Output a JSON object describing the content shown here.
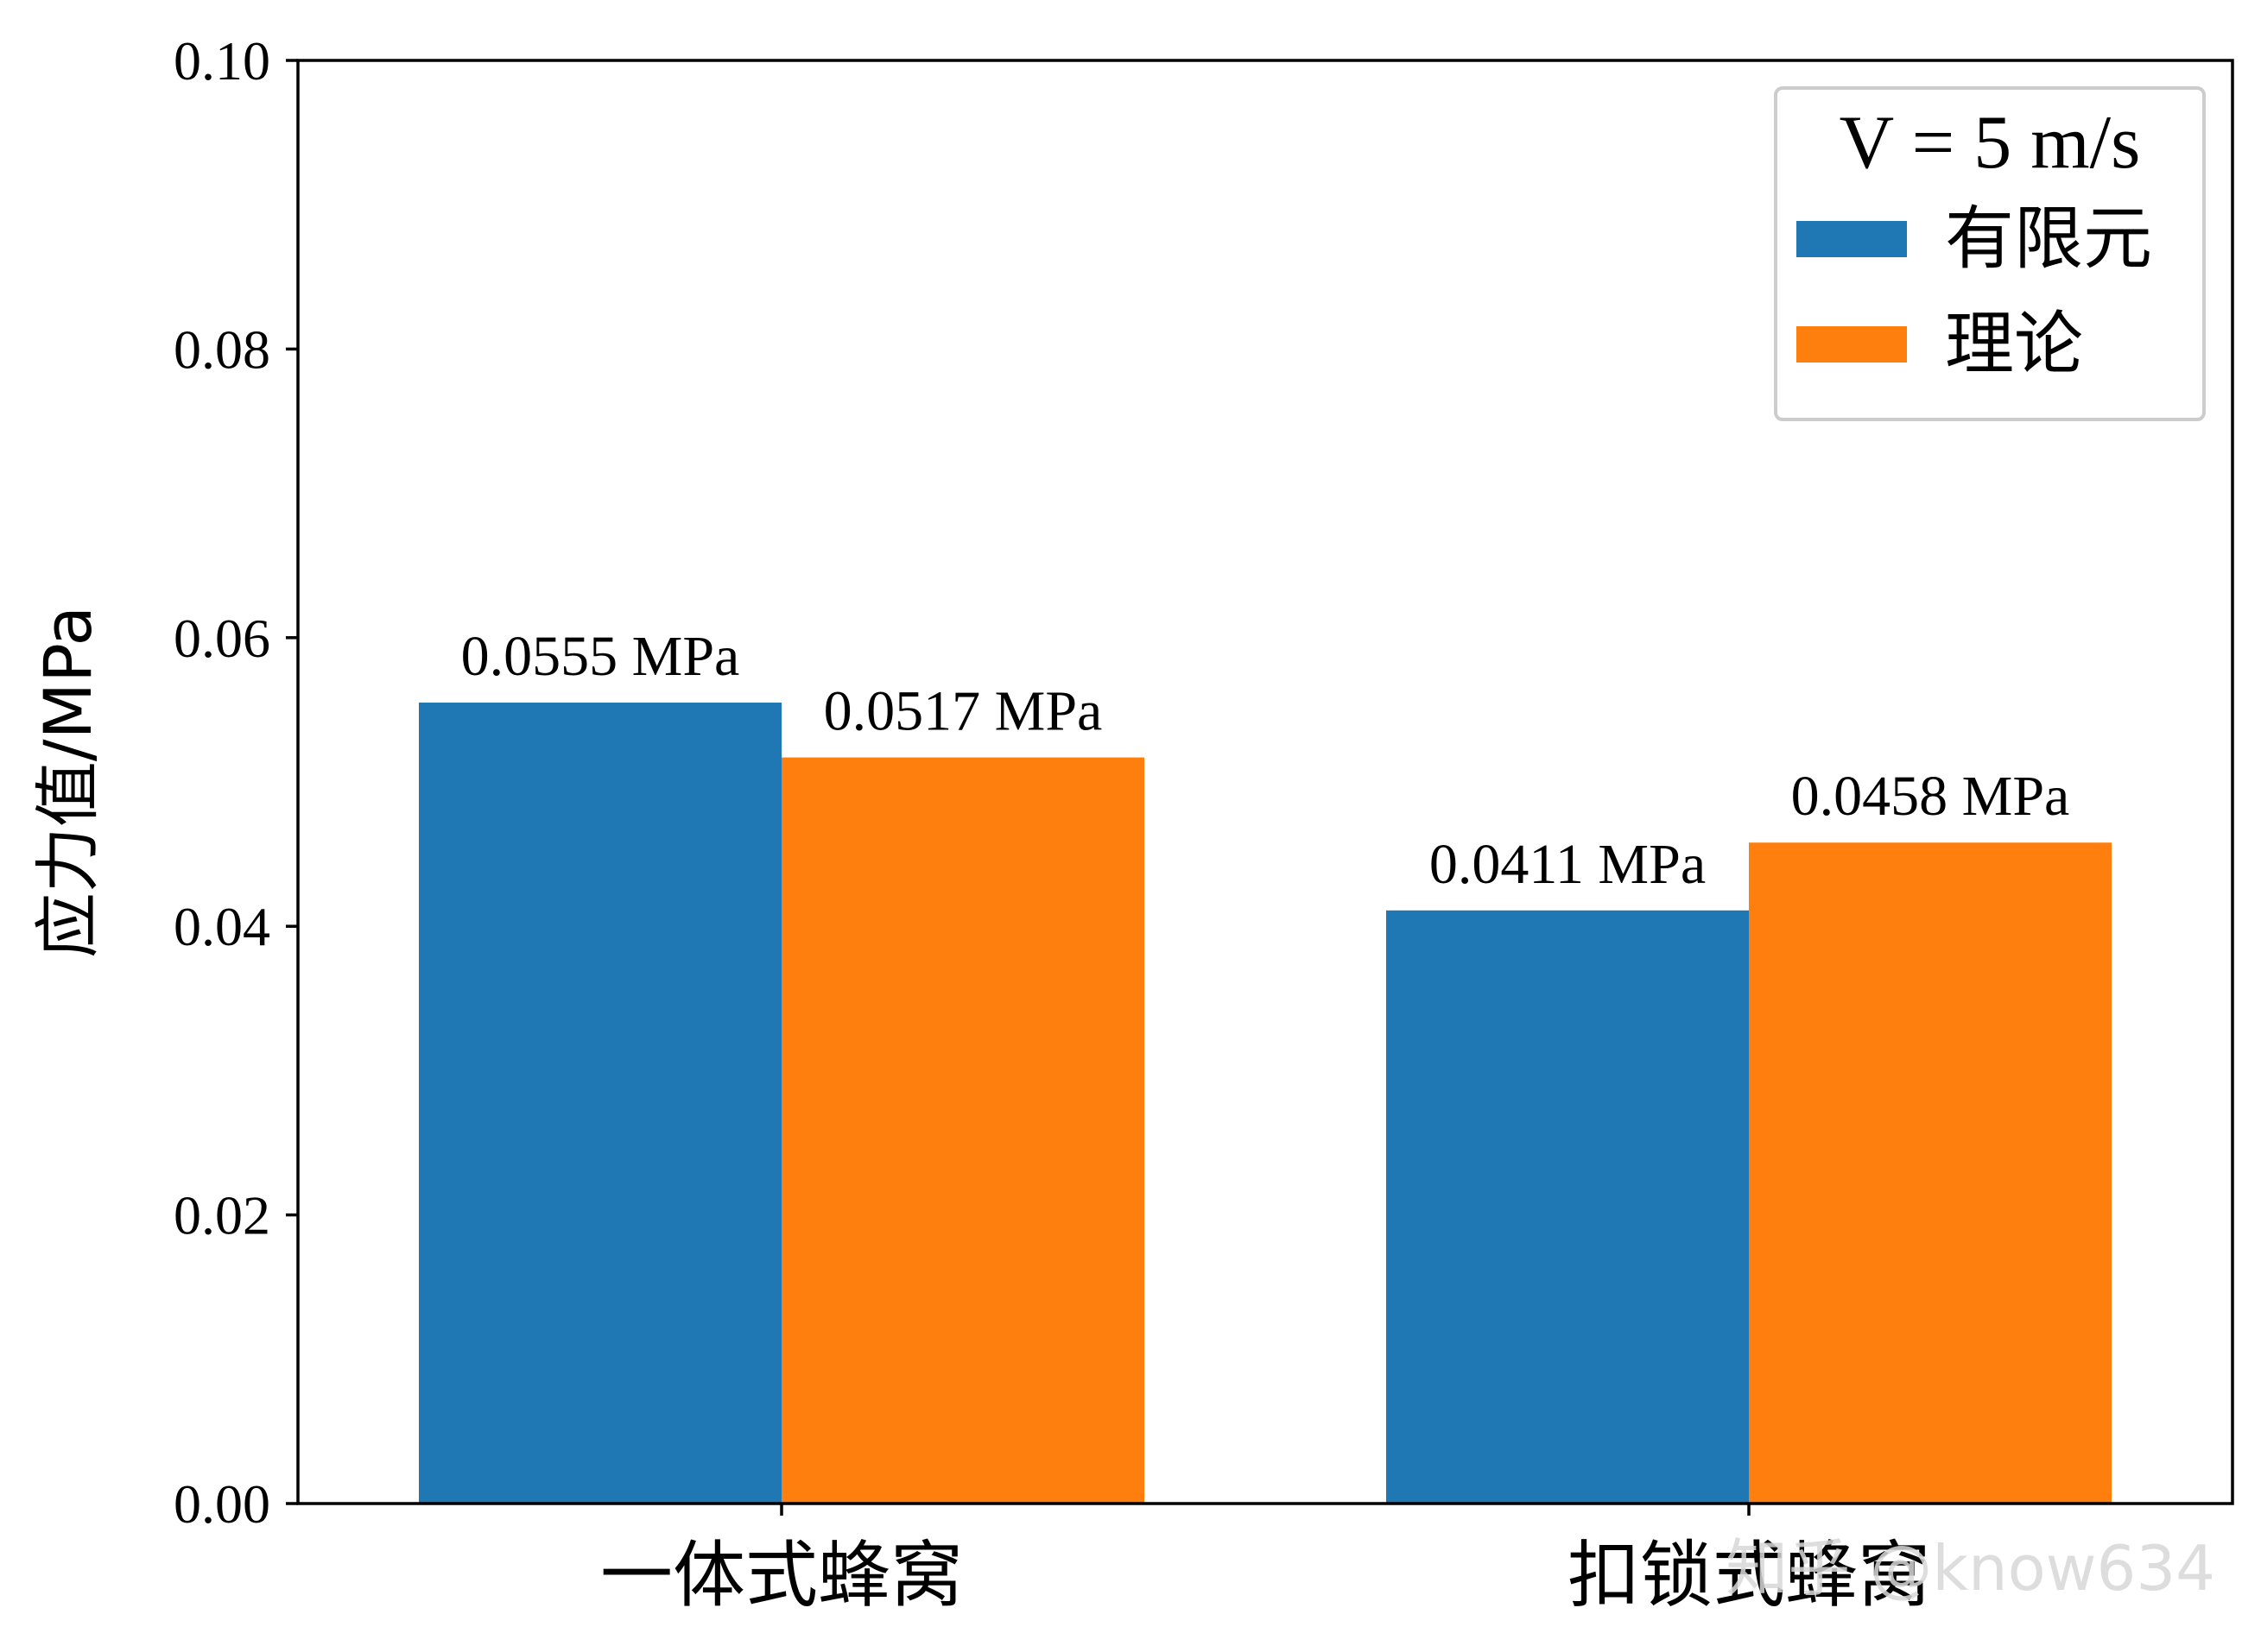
{
  "chart_data": {
    "type": "bar",
    "categories": [
      "一体式蜂窝",
      "扣锁式蜂窝"
    ],
    "series": [
      {
        "name": "有限元",
        "values": [
          0.0555,
          0.0411
        ],
        "color": "#1f77b4",
        "labels": [
          "0.0555 MPa",
          "0.0411 MPa"
        ]
      },
      {
        "name": "理论",
        "values": [
          0.0517,
          0.0458
        ],
        "color": "#ff7f0e",
        "labels": [
          "0.0517 MPa",
          "0.0458 MPa"
        ]
      }
    ],
    "ylabel": "应力值/MPa",
    "xlabel": "",
    "ylim": [
      0,
      0.1
    ],
    "yticks": [
      "0.00",
      "0.02",
      "0.04",
      "0.06",
      "0.08",
      "0.10"
    ],
    "legend": {
      "title": "V = 5 m/s",
      "position": "top-right"
    },
    "grid": false
  },
  "watermark": "知乎 @know634"
}
